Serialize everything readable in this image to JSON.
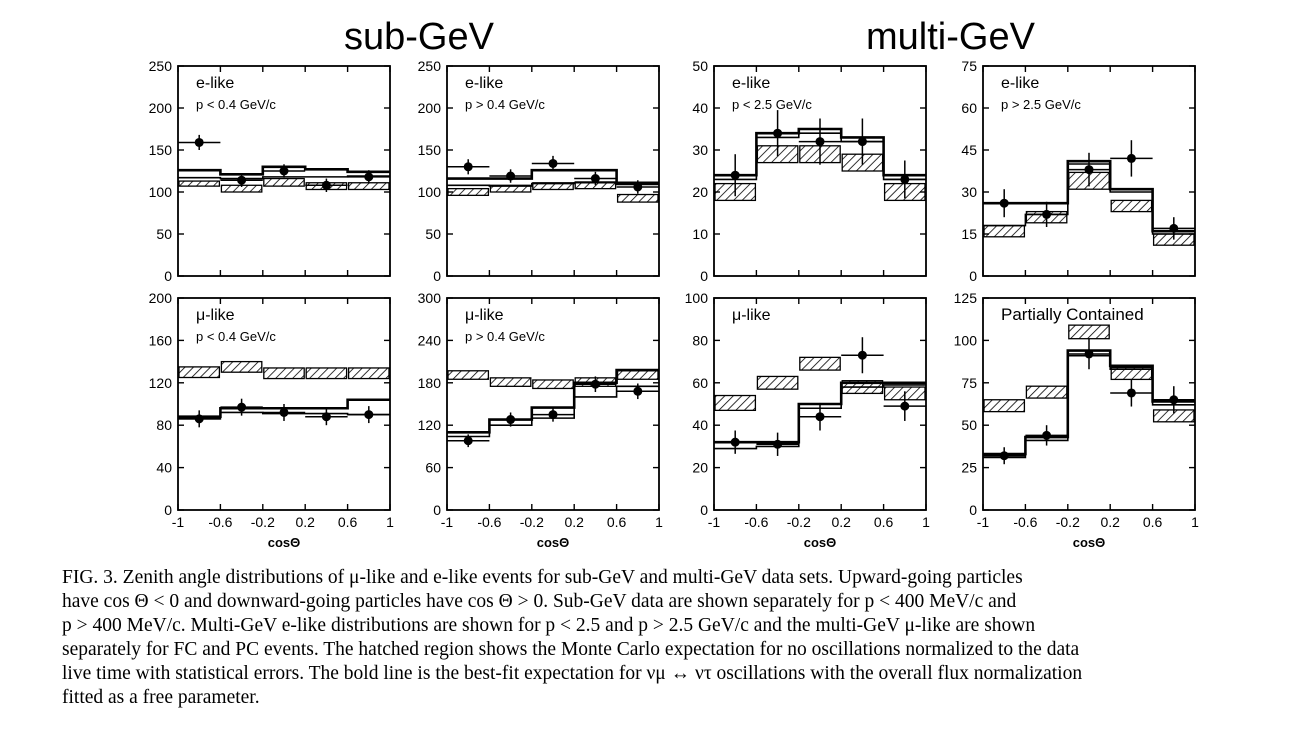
{
  "titles": {
    "left": "sub-GeV",
    "right": "multi-GeV"
  },
  "caption_lines": [
    "FIG. 3.   Zenith angle distributions of μ-like and e-like events for sub-GeV and multi-GeV data sets.  Upward-going particles",
    "have cos Θ < 0 and downward-going particles have cos Θ > 0.  Sub-GeV data are shown separately for p < 400 MeV/c and",
    "p > 400 MeV/c.  Multi-GeV e-like distributions are shown for p < 2.5 and p > 2.5 GeV/c and the multi-GeV μ-like are shown",
    "separately for FC and PC events.  The hatched region shows the Monte Carlo expectation for no oscillations normalized to the data",
    "live time with statistical errors.  The bold line is the best-fit expectation for νμ ↔ ντ oscillations with the overall flux normalization",
    "fitted as a free parameter."
  ],
  "chart_data": [
    {
      "type": "histogram",
      "label": "e-like",
      "sublabel": "p < 0.4 GeV/c",
      "xlabel": "",
      "xlim": [
        -1,
        1
      ],
      "xticks": [
        "-1",
        "-0.6",
        "-0.2",
        "0.2",
        "0.6",
        "1"
      ],
      "ylim": [
        0,
        250
      ],
      "yticks": [
        0,
        50,
        100,
        150,
        200,
        250
      ],
      "bins": [
        -1,
        -0.6,
        -0.2,
        0.2,
        0.6,
        1
      ],
      "mc_no_osc": [
        [
          107,
          113
        ],
        [
          100,
          108
        ],
        [
          107,
          116
        ],
        [
          103,
          111
        ],
        [
          103,
          111
        ]
      ],
      "best_fit": [
        126,
        121,
        130,
        127,
        124
      ],
      "best_fit_extra_line": [
        117,
        116,
        118,
        118,
        119
      ],
      "data": [
        {
          "x": -0.8,
          "y": 159,
          "err": 9
        },
        {
          "x": -0.4,
          "y": 114,
          "err": 8
        },
        {
          "x": 0.0,
          "y": 125,
          "err": 8
        },
        {
          "x": 0.4,
          "y": 108,
          "err": 8
        },
        {
          "x": 0.8,
          "y": 118,
          "err": 8
        }
      ]
    },
    {
      "type": "histogram",
      "label": "e-like",
      "sublabel": "p > 0.4 GeV/c",
      "xlabel": "",
      "xlim": [
        -1,
        1
      ],
      "xticks": [
        "-1",
        "-0.6",
        "-0.2",
        "0.2",
        "0.6",
        "1"
      ],
      "ylim": [
        0,
        250
      ],
      "yticks": [
        0,
        50,
        100,
        150,
        200,
        250
      ],
      "bins": [
        -1,
        -0.6,
        -0.2,
        0.2,
        0.6,
        1
      ],
      "mc_no_osc": [
        [
          96,
          104
        ],
        [
          100,
          108
        ],
        [
          103,
          111
        ],
        [
          104,
          112
        ],
        [
          88,
          97
        ]
      ],
      "best_fit": [
        116,
        116,
        126,
        126,
        111
      ],
      "best_fit_extra_line": [
        108,
        107,
        110,
        111,
        109
      ],
      "data": [
        {
          "x": -0.8,
          "y": 130,
          "err": 9
        },
        {
          "x": -0.4,
          "y": 119,
          "err": 8
        },
        {
          "x": 0.0,
          "y": 134,
          "err": 9
        },
        {
          "x": 0.4,
          "y": 116,
          "err": 8
        },
        {
          "x": 0.8,
          "y": 106,
          "err": 8
        }
      ]
    },
    {
      "type": "histogram",
      "label": "e-like",
      "sublabel": "p < 2.5 GeV/c",
      "xlabel": "",
      "xlim": [
        -1,
        1
      ],
      "xticks": [
        "-1",
        "-0.6",
        "-0.2",
        "0.2",
        "0.6",
        "1"
      ],
      "ylim": [
        0,
        50
      ],
      "yticks": [
        0,
        10,
        20,
        30,
        40,
        50
      ],
      "bins": [
        -1,
        -0.6,
        -0.2,
        0.2,
        0.6,
        1
      ],
      "mc_no_osc": [
        [
          18,
          22
        ],
        [
          27,
          31
        ],
        [
          27,
          31
        ],
        [
          25,
          29
        ],
        [
          18,
          22
        ]
      ],
      "best_fit": [
        24,
        34,
        35,
        33,
        24
      ],
      "best_fit_extra_line": [
        23,
        33,
        34,
        32,
        23
      ],
      "data": [
        {
          "x": -0.8,
          "y": 24,
          "err": 5
        },
        {
          "x": -0.4,
          "y": 34,
          "err": 5.5
        },
        {
          "x": 0.0,
          "y": 32,
          "err": 5.5
        },
        {
          "x": 0.4,
          "y": 32,
          "err": 5.5
        },
        {
          "x": 0.8,
          "y": 23,
          "err": 4.5
        }
      ]
    },
    {
      "type": "histogram",
      "label": "e-like",
      "sublabel": "p > 2.5 GeV/c",
      "xlabel": "",
      "xlim": [
        -1,
        1
      ],
      "xticks": [
        "-1",
        "-0.6",
        "-0.2",
        "0.2",
        "0.6",
        "1"
      ],
      "ylim": [
        0,
        75
      ],
      "yticks": [
        0,
        15,
        30,
        45,
        60,
        75
      ],
      "bins": [
        -1,
        -0.6,
        -0.2,
        0.2,
        0.6,
        1
      ],
      "mc_no_osc": [
        [
          14,
          18
        ],
        [
          19,
          23
        ],
        [
          31,
          37
        ],
        [
          23,
          27
        ],
        [
          11,
          15
        ]
      ],
      "best_fit": [
        26,
        26,
        41,
        31,
        16
      ],
      "best_fit_extra_line": [
        18,
        22,
        40,
        30,
        15
      ],
      "data": [
        {
          "x": -0.8,
          "y": 26,
          "err": 5
        },
        {
          "x": -0.4,
          "y": 22,
          "err": 4.5
        },
        {
          "x": 0.0,
          "y": 38,
          "err": 6
        },
        {
          "x": 0.4,
          "y": 42,
          "err": 6.5
        },
        {
          "x": 0.8,
          "y": 17,
          "err": 4
        }
      ]
    },
    {
      "type": "histogram",
      "label": "μ-like",
      "sublabel": "p < 0.4 GeV/c",
      "xlabel": "cosΘ",
      "xlim": [
        -1,
        1
      ],
      "xticks": [
        "-1",
        "-0.6",
        "-0.2",
        "0.2",
        "0.6",
        "1"
      ],
      "ylim": [
        0,
        200
      ],
      "yticks": [
        0,
        40,
        80,
        120,
        160,
        200
      ],
      "bins": [
        -1,
        -0.6,
        -0.2,
        0.2,
        0.6,
        1
      ],
      "mc_no_osc": [
        [
          125,
          135
        ],
        [
          130,
          140
        ],
        [
          124,
          134
        ],
        [
          124,
          134
        ],
        [
          124,
          134
        ]
      ],
      "best_fit": [
        88,
        96,
        96,
        96,
        104
      ],
      "best_fit_extra_line": [
        86,
        92,
        91,
        91,
        90
      ],
      "data": [
        {
          "x": -0.8,
          "y": 86,
          "err": 8
        },
        {
          "x": -0.4,
          "y": 97,
          "err": 8
        },
        {
          "x": 0.0,
          "y": 92,
          "err": 8
        },
        {
          "x": 0.4,
          "y": 88,
          "err": 8
        },
        {
          "x": 0.8,
          "y": 90,
          "err": 8
        }
      ]
    },
    {
      "type": "histogram",
      "label": "μ-like",
      "sublabel": "p > 0.4 GeV/c",
      "xlabel": "cosΘ",
      "xlim": [
        -1,
        1
      ],
      "xticks": [
        "-1",
        "-0.6",
        "-0.2",
        "0.2",
        "0.6",
        "1"
      ],
      "ylim": [
        0,
        300
      ],
      "yticks": [
        0,
        60,
        120,
        180,
        240,
        300
      ],
      "bins": [
        -1,
        -0.6,
        -0.2,
        0.2,
        0.6,
        1
      ],
      "mc_no_osc": [
        [
          185,
          197
        ],
        [
          175,
          187
        ],
        [
          172,
          184
        ],
        [
          175,
          187
        ],
        [
          185,
          197
        ]
      ],
      "best_fit": [
        110,
        128,
        145,
        180,
        198
      ],
      "best_fit_extra_line": [
        104,
        120,
        130,
        160,
        175
      ],
      "data": [
        {
          "x": -0.8,
          "y": 98,
          "err": 9
        },
        {
          "x": -0.4,
          "y": 128,
          "err": 10
        },
        {
          "x": 0.0,
          "y": 135,
          "err": 10
        },
        {
          "x": 0.4,
          "y": 178,
          "err": 11
        },
        {
          "x": 0.8,
          "y": 168,
          "err": 11
        }
      ]
    },
    {
      "type": "histogram",
      "label": "μ-like",
      "sublabel": "",
      "xlabel": "cosΘ",
      "xlim": [
        -1,
        1
      ],
      "xticks": [
        "-1",
        "-0.6",
        "-0.2",
        "0.2",
        "0.6",
        "1"
      ],
      "ylim": [
        0,
        100
      ],
      "yticks": [
        0,
        20,
        40,
        60,
        80,
        100
      ],
      "bins": [
        -1,
        -0.6,
        -0.2,
        0.2,
        0.6,
        1
      ],
      "mc_no_osc": [
        [
          47,
          54
        ],
        [
          57,
          63
        ],
        [
          66,
          72
        ],
        [
          55,
          61
        ],
        [
          52,
          58
        ]
      ],
      "best_fit": [
        32,
        32,
        50,
        60,
        60
      ],
      "best_fit_extra_line": [
        29,
        30,
        48,
        58,
        59
      ],
      "data": [
        {
          "x": -0.8,
          "y": 32,
          "err": 5.5
        },
        {
          "x": -0.4,
          "y": 31,
          "err": 5.5
        },
        {
          "x": 0.0,
          "y": 44,
          "err": 6.5
        },
        {
          "x": 0.4,
          "y": 73,
          "err": 8.5
        },
        {
          "x": 0.8,
          "y": 49,
          "err": 7
        }
      ]
    },
    {
      "type": "histogram",
      "label": "Partially Contained",
      "sublabel": "",
      "xlabel": "cosΘ",
      "xlim": [
        -1,
        1
      ],
      "xticks": [
        "-1",
        "-0.6",
        "-0.2",
        "0.2",
        "0.6",
        "1"
      ],
      "ylim": [
        0,
        125
      ],
      "yticks": [
        0,
        25,
        50,
        75,
        100,
        125
      ],
      "bins": [
        -1,
        -0.6,
        -0.2,
        0.2,
        0.6,
        1
      ],
      "mc_no_osc": [
        [
          58,
          65
        ],
        [
          66,
          73
        ],
        [
          101,
          109
        ],
        [
          77,
          84
        ],
        [
          52,
          59
        ]
      ],
      "best_fit": [
        33,
        43,
        94,
        85,
        64
      ],
      "best_fit_extra_line": [
        31,
        41,
        91,
        83,
        62
      ],
      "data": [
        {
          "x": -0.8,
          "y": 32,
          "err": 5
        },
        {
          "x": -0.4,
          "y": 44,
          "err": 6
        },
        {
          "x": 0.0,
          "y": 92,
          "err": 9
        },
        {
          "x": 0.4,
          "y": 69,
          "err": 8
        },
        {
          "x": 0.8,
          "y": 65,
          "err": 8
        }
      ]
    }
  ]
}
